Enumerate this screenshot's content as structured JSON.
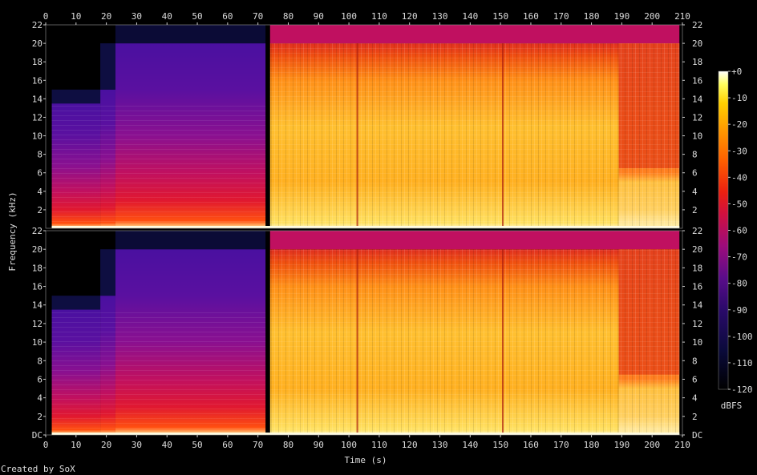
{
  "chart_data": {
    "type": "heatmap",
    "subtype": "spectrogram",
    "xlabel": "Time (s)",
    "ylabel": "Frequency (kHz)",
    "x_ticks": [
      0,
      10,
      20,
      30,
      40,
      50,
      60,
      70,
      80,
      90,
      100,
      110,
      120,
      130,
      140,
      150,
      160,
      170,
      180,
      190,
      200,
      210
    ],
    "xlim": [
      0,
      210
    ],
    "channels": [
      {
        "y_ticks": [
          {
            "v": 2,
            "label": "2"
          },
          {
            "v": 4,
            "label": "4"
          },
          {
            "v": 6,
            "label": "6"
          },
          {
            "v": 8,
            "label": "8"
          },
          {
            "v": 10,
            "label": "10"
          },
          {
            "v": 12,
            "label": "12"
          },
          {
            "v": 14,
            "label": "14"
          },
          {
            "v": 16,
            "label": "16"
          },
          {
            "v": 18,
            "label": "18"
          },
          {
            "v": 20,
            "label": "20"
          },
          {
            "v": 22,
            "label": "22"
          }
        ]
      },
      {
        "y_ticks": [
          {
            "v": 0,
            "label": "DC"
          },
          {
            "v": 2,
            "label": "2"
          },
          {
            "v": 4,
            "label": "4"
          },
          {
            "v": 6,
            "label": "6"
          },
          {
            "v": 8,
            "label": "8"
          },
          {
            "v": 10,
            "label": "10"
          },
          {
            "v": 12,
            "label": "12"
          },
          {
            "v": 14,
            "label": "14"
          },
          {
            "v": 16,
            "label": "16"
          },
          {
            "v": 18,
            "label": "18"
          },
          {
            "v": 20,
            "label": "20"
          },
          {
            "v": 22,
            "label": "22"
          }
        ]
      }
    ],
    "ylim_khz": [
      0,
      22
    ],
    "colorbar": {
      "unit": "dBFS",
      "ticks": [
        "+0",
        "-10",
        "-20",
        "-30",
        "-40",
        "-50",
        "-60",
        "-70",
        "-80",
        "-90",
        "-100",
        "-110",
        "-120"
      ],
      "range": [
        -120,
        0
      ]
    },
    "segments_seconds": [
      {
        "start": 0,
        "end": 2,
        "level_dbfs": -120
      },
      {
        "start": 2,
        "end": 18,
        "cutoff_khz": 13.5
      },
      {
        "start": 18,
        "end": 23,
        "cutoff_khz": 15
      },
      {
        "start": 23,
        "end": 72.5,
        "cutoff_khz": 20
      },
      {
        "start": 72.5,
        "end": 74,
        "level_dbfs": -120
      },
      {
        "start": 74,
        "end": 189,
        "cutoff_khz": 20
      },
      {
        "start": 189,
        "end": 209,
        "cutoff_khz": 20
      },
      {
        "start": 209,
        "end": 210.5,
        "level_dbfs": -120
      }
    ]
  },
  "footer": {
    "credit": "Created by SoX"
  }
}
